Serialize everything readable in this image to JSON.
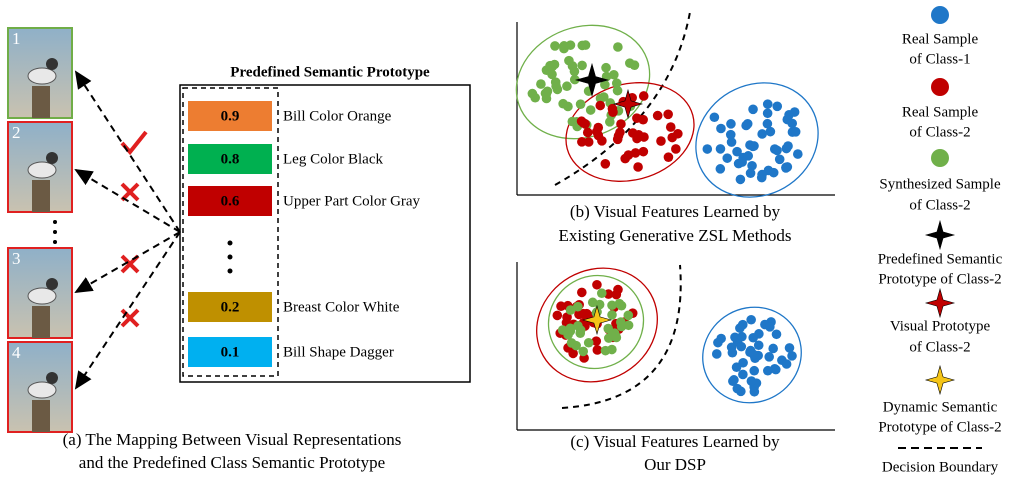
{
  "panel_a": {
    "images": [
      {
        "label": "1"
      },
      {
        "label": "2"
      },
      {
        "label": "3"
      },
      {
        "label": "4"
      }
    ],
    "prototype_title": "Predefined Semantic Prototype",
    "attributes": [
      {
        "value": 0.9,
        "label": "Bill Color Orange",
        "color": "#ED7D31"
      },
      {
        "value": 0.8,
        "label": "Leg Color Black",
        "color": "#00B050"
      },
      {
        "value": 0.6,
        "label": "Upper Part Color Gray",
        "color": "#C00000"
      },
      {
        "value": 0.2,
        "label": "Breast Color White",
        "color": "#BF9000"
      },
      {
        "value": 0.1,
        "label": "Bill Shape Dagger",
        "color": "#00B0F0"
      }
    ],
    "caption": [
      "(a)  The Mapping Between Visual Representations",
      "and the Predefined Class Semantic Prototype"
    ]
  },
  "panel_b": {
    "caption": [
      "(b) Visual Features Learned by",
      "Existing Generative ZSL Methods"
    ]
  },
  "panel_c": {
    "caption": [
      "(c) Visual Features Learned by",
      "Our DSP"
    ]
  },
  "legend": [
    {
      "lines": [
        "Real Sample",
        "of Class-1"
      ]
    },
    {
      "lines": [
        "Real Sample",
        "of Class-2"
      ]
    },
    {
      "lines": [
        "Synthesized Sample",
        "of Class-2"
      ]
    },
    {
      "lines": [
        "Predefined Semantic",
        "Prototype of Class-2"
      ]
    },
    {
      "lines": [
        "Visual Prototype",
        "of Class-2"
      ]
    },
    {
      "lines": [
        "Dynamic Semantic",
        "Prototype of Class-2"
      ]
    },
    {
      "lines": [
        "Decision Boundary"
      ]
    }
  ]
}
